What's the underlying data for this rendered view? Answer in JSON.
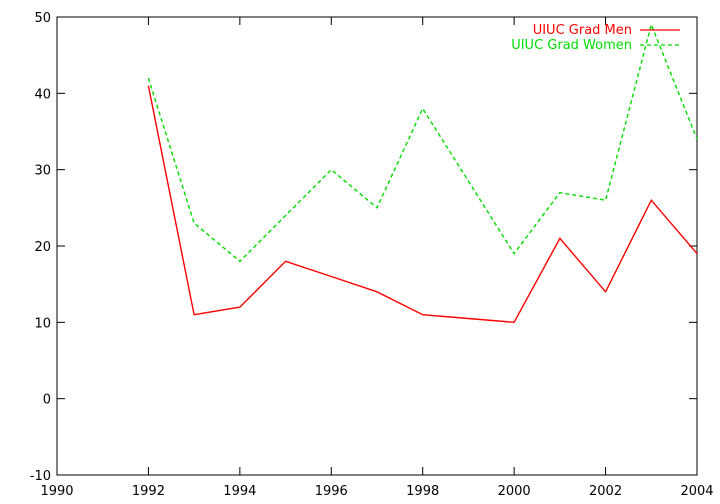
{
  "chart_data": {
    "type": "line",
    "title": "",
    "xlabel": "",
    "ylabel": "",
    "xlim": [
      1990,
      2004
    ],
    "ylim": [
      -10,
      50
    ],
    "x_ticks": [
      1990,
      1992,
      1994,
      1996,
      1998,
      2000,
      2002,
      2004
    ],
    "y_ticks": [
      -10,
      0,
      10,
      20,
      30,
      40,
      50
    ],
    "x_tick_labels": [
      "1990",
      "1992",
      "1994",
      "1996",
      "1998",
      "2000",
      "2002",
      "2004"
    ],
    "y_tick_labels": [
      "-10",
      "0",
      "10",
      "20",
      "30",
      "40",
      "50"
    ],
    "grid": false,
    "legend_position": "top-right",
    "x": [
      1992,
      1993,
      1994,
      1995,
      1996,
      1997,
      1998,
      1999,
      2000,
      2001,
      2002,
      2003,
      2004
    ],
    "series": [
      {
        "name": "UIUC Grad Men",
        "color": "#ff0000",
        "style": "solid",
        "values": [
          41,
          11,
          12,
          18,
          16,
          14,
          11,
          10.5,
          10,
          21,
          14,
          26,
          19
        ]
      },
      {
        "name": "UIUC Grad Women",
        "color": "#00dd00",
        "style": "dashed",
        "values": [
          42,
          23,
          18,
          24,
          30,
          25,
          38,
          28.5,
          19,
          27,
          26,
          49,
          34
        ]
      }
    ]
  }
}
